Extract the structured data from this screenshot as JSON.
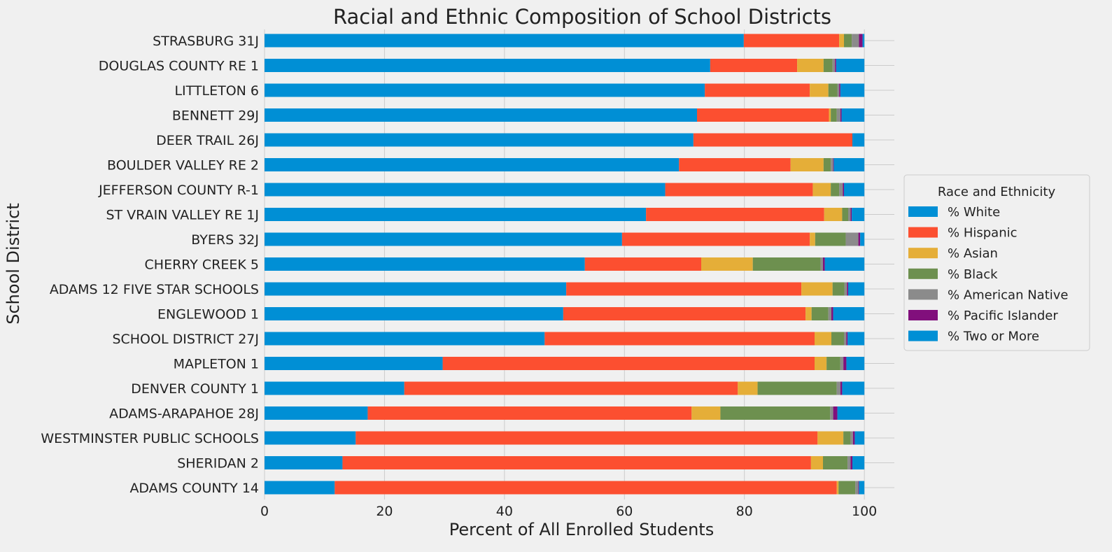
{
  "chart_data": {
    "type": "bar",
    "orientation": "horizontal",
    "stacked": true,
    "title": "Racial and Ethnic Composition of School Districts",
    "xlabel": "Percent of All Enrolled Students",
    "ylabel": "School District",
    "xlim": [
      0,
      105
    ],
    "xticks": [
      0,
      20,
      40,
      60,
      80,
      100
    ],
    "grid": true,
    "legend_title": "Race and Ethnicity",
    "legend_position": "center right, outside plot",
    "categories": [
      "STRASBURG 31J",
      "DOUGLAS COUNTY RE 1",
      "LITTLETON 6",
      "BENNETT 29J",
      "DEER TRAIL 26J",
      "BOULDER VALLEY RE 2",
      "JEFFERSON COUNTY R-1",
      "ST VRAIN VALLEY RE 1J",
      "BYERS 32J",
      "CHERRY CREEK 5",
      "ADAMS 12 FIVE STAR SCHOOLS",
      "ENGLEWOOD 1",
      "SCHOOL DISTRICT 27J",
      "MAPLETON 1",
      "DENVER COUNTY 1",
      "ADAMS-ARAPAHOE 28J",
      "WESTMINSTER PUBLIC SCHOOLS",
      "SHERIDAN 2",
      "ADAMS COUNTY 14"
    ],
    "series": [
      {
        "name": "% White",
        "color": "#008fd5",
        "values": [
          79.9,
          74.3,
          73.4,
          72.1,
          71.5,
          69.1,
          66.8,
          63.6,
          59.6,
          53.4,
          50.3,
          49.8,
          46.7,
          29.7,
          23.3,
          17.2,
          15.2,
          13.0,
          11.7
        ]
      },
      {
        "name": "% Hispanic",
        "color": "#fc4f30",
        "values": [
          15.9,
          14.5,
          17.5,
          22.0,
          26.5,
          18.6,
          24.6,
          29.7,
          31.3,
          19.4,
          39.2,
          40.4,
          45.0,
          62.0,
          55.6,
          54.0,
          77.0,
          78.1,
          83.7
        ]
      },
      {
        "name": "% Asian",
        "color": "#e5ae38",
        "values": [
          0.8,
          4.4,
          3.1,
          0.3,
          0.0,
          5.5,
          3.0,
          3.0,
          0.9,
          8.6,
          5.2,
          1.0,
          2.8,
          2.0,
          3.3,
          4.8,
          4.3,
          2.0,
          0.3
        ]
      },
      {
        "name": "% Black",
        "color": "#6d904f",
        "values": [
          1.3,
          1.5,
          1.5,
          1.0,
          0.0,
          1.2,
          1.4,
          1.0,
          5.1,
          11.3,
          2.0,
          2.8,
          2.1,
          2.3,
          13.2,
          18.3,
          1.2,
          4.1,
          2.8
        ]
      },
      {
        "name": "% American Native",
        "color": "#8b8b8b",
        "values": [
          1.2,
          0.4,
          0.3,
          0.6,
          0.0,
          0.4,
          0.6,
          0.4,
          2.1,
          0.4,
          0.4,
          0.5,
          0.4,
          0.5,
          0.6,
          0.5,
          0.4,
          0.5,
          0.5
        ]
      },
      {
        "name": "% Pacific Islander",
        "color": "#810f7c",
        "values": [
          0.6,
          0.2,
          0.2,
          0.2,
          0.0,
          0.1,
          0.2,
          0.2,
          0.3,
          0.3,
          0.2,
          0.3,
          0.2,
          0.5,
          0.3,
          0.7,
          0.3,
          0.3,
          0.1
        ]
      },
      {
        "name": "% Two or More",
        "color": "#008fd5",
        "values": [
          0.3,
          4.7,
          4.0,
          3.8,
          2.0,
          5.1,
          3.4,
          2.1,
          0.7,
          6.6,
          2.7,
          5.2,
          2.8,
          3.0,
          3.7,
          4.5,
          1.6,
          2.0,
          0.9
        ]
      }
    ]
  }
}
